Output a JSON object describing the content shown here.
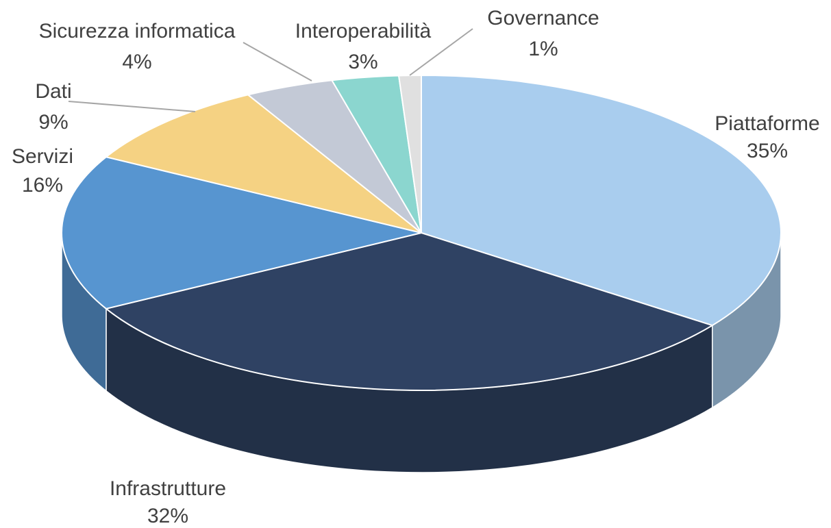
{
  "chart_data": {
    "type": "pie",
    "categories": [
      "Piattaforme",
      "Infrastrutture",
      "Servizi",
      "Dati",
      "Sicurezza informatica",
      "Interoperabilità",
      "Governance"
    ],
    "values": [
      35,
      32,
      16,
      9,
      4,
      3,
      1
    ],
    "value_labels": [
      "35%",
      "32%",
      "16%",
      "9%",
      "4%",
      "3%",
      "1%"
    ],
    "colors": [
      "#a9cdee",
      "#2f4263",
      "#5795d0",
      "#f5d283",
      "#c3c9d6",
      "#8bd6cf",
      "#e0e0e0"
    ]
  }
}
